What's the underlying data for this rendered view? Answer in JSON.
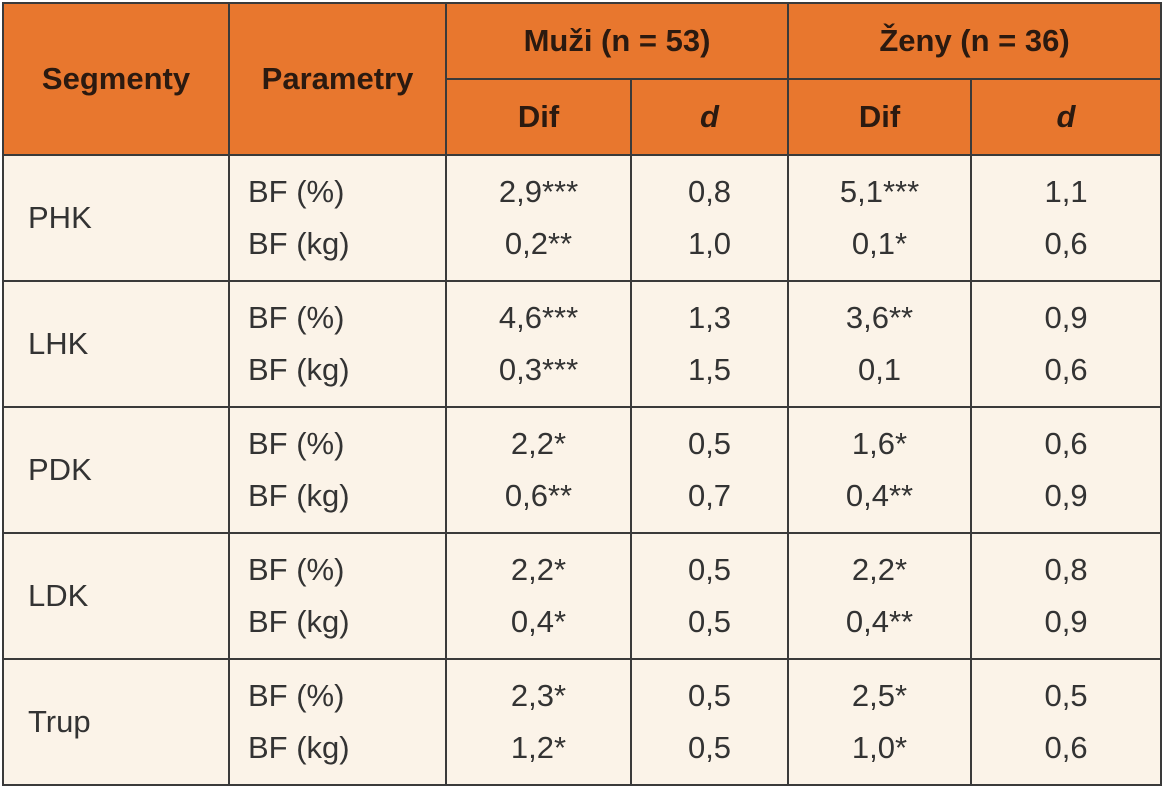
{
  "header": {
    "segment": "Segmenty",
    "parameter": "Parametry",
    "groups": [
      "Muži (n = 53)",
      "Ženy (n = 36)"
    ],
    "subheaders": [
      "Dif",
      "d",
      "Dif",
      "d"
    ]
  },
  "table": {
    "rows": [
      {
        "segment": "PHK",
        "parameters": [
          "BF (%)",
          "BF (kg)"
        ],
        "values": [
          [
            "2,9***",
            "0,8",
            "5,1***",
            "1,1"
          ],
          [
            "0,2**",
            "1,0",
            "0,1*",
            "0,6"
          ]
        ]
      },
      {
        "segment": "LHK",
        "parameters": [
          "BF (%)",
          "BF (kg)"
        ],
        "values": [
          [
            "4,6***",
            "1,3",
            "3,6**",
            "0,9"
          ],
          [
            "0,3***",
            "1,5",
            "0,1",
            "0,6"
          ]
        ]
      },
      {
        "segment": "PDK",
        "parameters": [
          "BF (%)",
          "BF (kg)"
        ],
        "values": [
          [
            "2,2*",
            "0,5",
            "1,6*",
            "0,6"
          ],
          [
            "0,6**",
            "0,7",
            "0,4**",
            "0,9"
          ]
        ]
      },
      {
        "segment": "LDK",
        "parameters": [
          "BF (%)",
          "BF (kg)"
        ],
        "values": [
          [
            "2,2*",
            "0,5",
            "2,2*",
            "0,8"
          ],
          [
            "0,4*",
            "0,5",
            "0,4**",
            "0,9"
          ]
        ]
      },
      {
        "segment": "Trup",
        "parameters": [
          "BF (%)",
          "BF (kg)"
        ],
        "values": [
          [
            "2,3*",
            "0,5",
            "2,5*",
            "0,5"
          ],
          [
            "1,2*",
            "0,5",
            "1,0*",
            "0,6"
          ]
        ]
      }
    ]
  }
}
